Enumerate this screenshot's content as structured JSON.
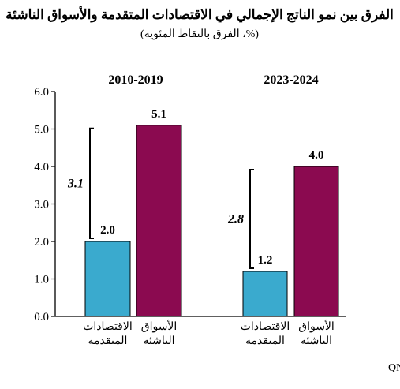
{
  "chart_data": {
    "type": "bar",
    "title": "الفرق بين نمو الناتج الإجمالي في الاقتصادات المتقدمة والأسواق الناشئة",
    "subtitle": "(%، الفرق بالنقاط المئوية)",
    "ylim": [
      0,
      6
    ],
    "yticks": [
      "0.0",
      "1.0",
      "2.0",
      "3.0",
      "4.0",
      "5.0",
      "6.0"
    ],
    "groups": [
      {
        "period": "2010-2019",
        "gap_label": "3.1",
        "bars": [
          {
            "category": [
              "الاقتصادات",
              "المتقدمة"
            ],
            "value": 2.0,
            "label": "2.0",
            "color": "#3AAACE"
          },
          {
            "category": [
              "الأسواق",
              "الناشئة"
            ],
            "value": 5.1,
            "label": "5.1",
            "color": "#8B0A50"
          }
        ]
      },
      {
        "period": "2023-2024",
        "gap_label": "2.8",
        "bars": [
          {
            "category": [
              "الاقتصادات",
              "المتقدمة"
            ],
            "value": 1.2,
            "label": "1.2",
            "color": "#3AAACE"
          },
          {
            "category": [
              "الأسواق",
              "الناشئة"
            ],
            "value": 4.0,
            "label": "4.0",
            "color": "#8B0A50"
          }
        ]
      }
    ],
    "source": "المصادر: تقرير آفاق الاقتصاد العالمي لصندوق النقد الدولي، قسم الاقتصاد في QNB"
  }
}
